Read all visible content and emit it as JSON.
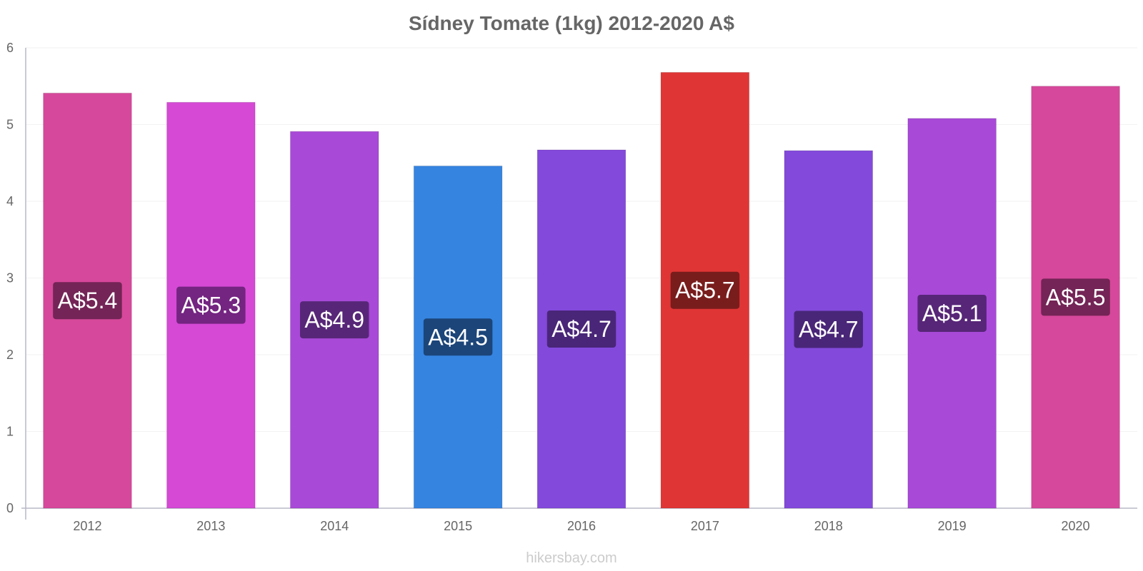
{
  "chart_data": {
    "type": "bar",
    "title": "Sídney Tomate (1kg) 2012-2020 A$",
    "xlabel": "",
    "ylabel": "",
    "categories": [
      "2012",
      "2013",
      "2014",
      "2015",
      "2016",
      "2017",
      "2018",
      "2019",
      "2020"
    ],
    "values": [
      5.41,
      5.29,
      4.91,
      4.46,
      4.67,
      5.68,
      4.66,
      5.08,
      5.5
    ],
    "data_labels": [
      "A$5.4",
      "A$5.3",
      "A$4.9",
      "A$4.5",
      "A$4.7",
      "A$5.7",
      "A$4.7",
      "A$5.1",
      "A$5.5"
    ],
    "bar_colors": [
      "#d6489b",
      "#d549d5",
      "#a849d8",
      "#3584e0",
      "#8349db",
      "#e03535",
      "#8349db",
      "#a849d8",
      "#d6489b"
    ],
    "label_colors": [
      "#6b2250",
      "#6b2279",
      "#502470",
      "#1a4070",
      "#442470",
      "#701a1a",
      "#442470",
      "#502470",
      "#6b2250"
    ],
    "ylim": [
      0,
      6
    ],
    "yticks": [
      0,
      1,
      2,
      3,
      4,
      5,
      6
    ],
    "grid": true,
    "legend": "none"
  },
  "watermark": "hikersbay.com"
}
